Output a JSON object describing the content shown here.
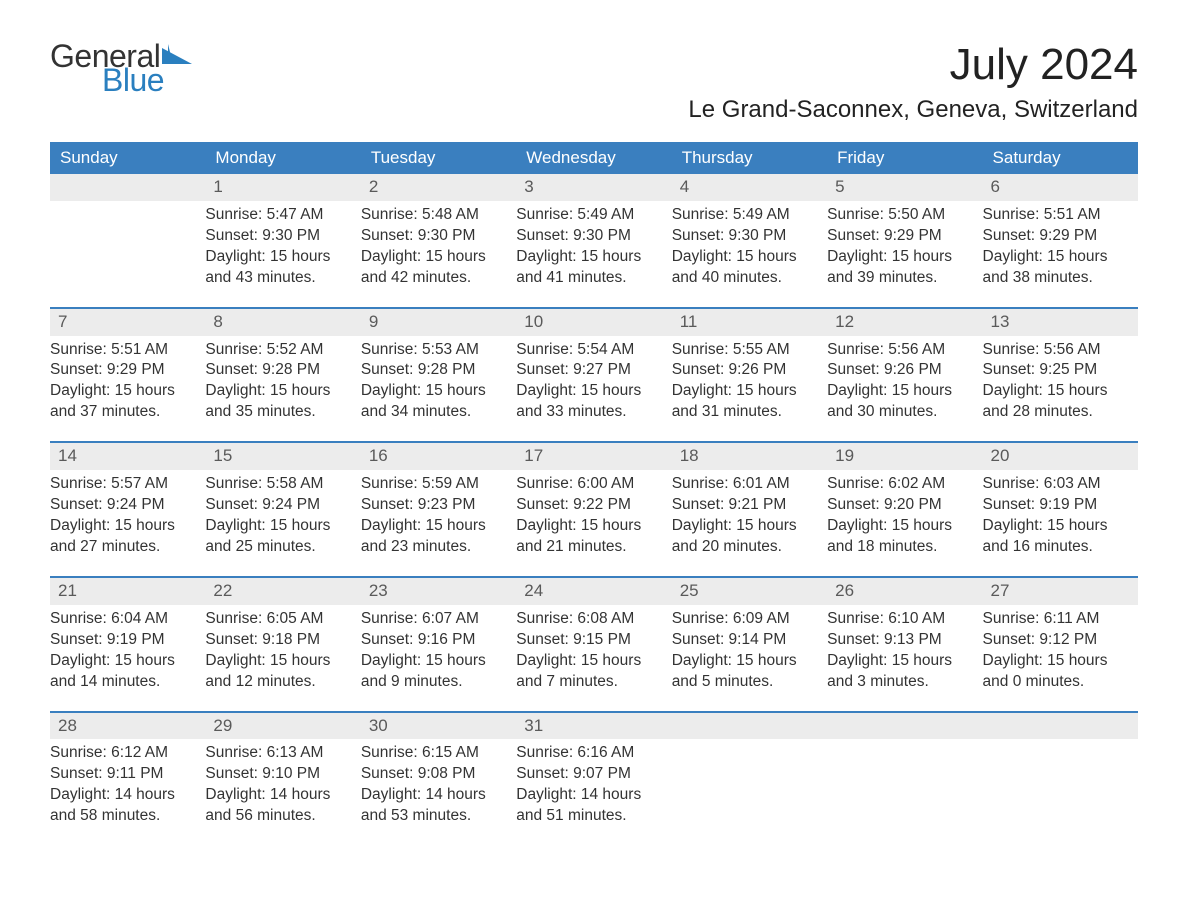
{
  "logo_word1": "General",
  "logo_word2": "Blue",
  "logo_icon_color": "#2a7fbf",
  "title": "July 2024",
  "location": "Le Grand-Saconnex, Geneva, Switzerland",
  "header_bg": "#3a7fbf",
  "header_fg": "#ffffff",
  "daynum_bg": "#ececec",
  "week_border_color": "#3a7fbf",
  "text_color": "#333333",
  "background_color": "#ffffff",
  "fontsize_title": 44,
  "fontsize_location": 24,
  "fontsize_header": 17,
  "fontsize_body": 15.5,
  "day_headers": [
    "Sunday",
    "Monday",
    "Tuesday",
    "Wednesday",
    "Thursday",
    "Friday",
    "Saturday"
  ],
  "weeks": [
    [
      null,
      {
        "n": "1",
        "sunrise": "Sunrise: 5:47 AM",
        "sunset": "Sunset: 9:30 PM",
        "d1": "Daylight: 15 hours",
        "d2": "and 43 minutes."
      },
      {
        "n": "2",
        "sunrise": "Sunrise: 5:48 AM",
        "sunset": "Sunset: 9:30 PM",
        "d1": "Daylight: 15 hours",
        "d2": "and 42 minutes."
      },
      {
        "n": "3",
        "sunrise": "Sunrise: 5:49 AM",
        "sunset": "Sunset: 9:30 PM",
        "d1": "Daylight: 15 hours",
        "d2": "and 41 minutes."
      },
      {
        "n": "4",
        "sunrise": "Sunrise: 5:49 AM",
        "sunset": "Sunset: 9:30 PM",
        "d1": "Daylight: 15 hours",
        "d2": "and 40 minutes."
      },
      {
        "n": "5",
        "sunrise": "Sunrise: 5:50 AM",
        "sunset": "Sunset: 9:29 PM",
        "d1": "Daylight: 15 hours",
        "d2": "and 39 minutes."
      },
      {
        "n": "6",
        "sunrise": "Sunrise: 5:51 AM",
        "sunset": "Sunset: 9:29 PM",
        "d1": "Daylight: 15 hours",
        "d2": "and 38 minutes."
      }
    ],
    [
      {
        "n": "7",
        "sunrise": "Sunrise: 5:51 AM",
        "sunset": "Sunset: 9:29 PM",
        "d1": "Daylight: 15 hours",
        "d2": "and 37 minutes."
      },
      {
        "n": "8",
        "sunrise": "Sunrise: 5:52 AM",
        "sunset": "Sunset: 9:28 PM",
        "d1": "Daylight: 15 hours",
        "d2": "and 35 minutes."
      },
      {
        "n": "9",
        "sunrise": "Sunrise: 5:53 AM",
        "sunset": "Sunset: 9:28 PM",
        "d1": "Daylight: 15 hours",
        "d2": "and 34 minutes."
      },
      {
        "n": "10",
        "sunrise": "Sunrise: 5:54 AM",
        "sunset": "Sunset: 9:27 PM",
        "d1": "Daylight: 15 hours",
        "d2": "and 33 minutes."
      },
      {
        "n": "11",
        "sunrise": "Sunrise: 5:55 AM",
        "sunset": "Sunset: 9:26 PM",
        "d1": "Daylight: 15 hours",
        "d2": "and 31 minutes."
      },
      {
        "n": "12",
        "sunrise": "Sunrise: 5:56 AM",
        "sunset": "Sunset: 9:26 PM",
        "d1": "Daylight: 15 hours",
        "d2": "and 30 minutes."
      },
      {
        "n": "13",
        "sunrise": "Sunrise: 5:56 AM",
        "sunset": "Sunset: 9:25 PM",
        "d1": "Daylight: 15 hours",
        "d2": "and 28 minutes."
      }
    ],
    [
      {
        "n": "14",
        "sunrise": "Sunrise: 5:57 AM",
        "sunset": "Sunset: 9:24 PM",
        "d1": "Daylight: 15 hours",
        "d2": "and 27 minutes."
      },
      {
        "n": "15",
        "sunrise": "Sunrise: 5:58 AM",
        "sunset": "Sunset: 9:24 PM",
        "d1": "Daylight: 15 hours",
        "d2": "and 25 minutes."
      },
      {
        "n": "16",
        "sunrise": "Sunrise: 5:59 AM",
        "sunset": "Sunset: 9:23 PM",
        "d1": "Daylight: 15 hours",
        "d2": "and 23 minutes."
      },
      {
        "n": "17",
        "sunrise": "Sunrise: 6:00 AM",
        "sunset": "Sunset: 9:22 PM",
        "d1": "Daylight: 15 hours",
        "d2": "and 21 minutes."
      },
      {
        "n": "18",
        "sunrise": "Sunrise: 6:01 AM",
        "sunset": "Sunset: 9:21 PM",
        "d1": "Daylight: 15 hours",
        "d2": "and 20 minutes."
      },
      {
        "n": "19",
        "sunrise": "Sunrise: 6:02 AM",
        "sunset": "Sunset: 9:20 PM",
        "d1": "Daylight: 15 hours",
        "d2": "and 18 minutes."
      },
      {
        "n": "20",
        "sunrise": "Sunrise: 6:03 AM",
        "sunset": "Sunset: 9:19 PM",
        "d1": "Daylight: 15 hours",
        "d2": "and 16 minutes."
      }
    ],
    [
      {
        "n": "21",
        "sunrise": "Sunrise: 6:04 AM",
        "sunset": "Sunset: 9:19 PM",
        "d1": "Daylight: 15 hours",
        "d2": "and 14 minutes."
      },
      {
        "n": "22",
        "sunrise": "Sunrise: 6:05 AM",
        "sunset": "Sunset: 9:18 PM",
        "d1": "Daylight: 15 hours",
        "d2": "and 12 minutes."
      },
      {
        "n": "23",
        "sunrise": "Sunrise: 6:07 AM",
        "sunset": "Sunset: 9:16 PM",
        "d1": "Daylight: 15 hours",
        "d2": "and 9 minutes."
      },
      {
        "n": "24",
        "sunrise": "Sunrise: 6:08 AM",
        "sunset": "Sunset: 9:15 PM",
        "d1": "Daylight: 15 hours",
        "d2": "and 7 minutes."
      },
      {
        "n": "25",
        "sunrise": "Sunrise: 6:09 AM",
        "sunset": "Sunset: 9:14 PM",
        "d1": "Daylight: 15 hours",
        "d2": "and 5 minutes."
      },
      {
        "n": "26",
        "sunrise": "Sunrise: 6:10 AM",
        "sunset": "Sunset: 9:13 PM",
        "d1": "Daylight: 15 hours",
        "d2": "and 3 minutes."
      },
      {
        "n": "27",
        "sunrise": "Sunrise: 6:11 AM",
        "sunset": "Sunset: 9:12 PM",
        "d1": "Daylight: 15 hours",
        "d2": "and 0 minutes."
      }
    ],
    [
      {
        "n": "28",
        "sunrise": "Sunrise: 6:12 AM",
        "sunset": "Sunset: 9:11 PM",
        "d1": "Daylight: 14 hours",
        "d2": "and 58 minutes."
      },
      {
        "n": "29",
        "sunrise": "Sunrise: 6:13 AM",
        "sunset": "Sunset: 9:10 PM",
        "d1": "Daylight: 14 hours",
        "d2": "and 56 minutes."
      },
      {
        "n": "30",
        "sunrise": "Sunrise: 6:15 AM",
        "sunset": "Sunset: 9:08 PM",
        "d1": "Daylight: 14 hours",
        "d2": "and 53 minutes."
      },
      {
        "n": "31",
        "sunrise": "Sunrise: 6:16 AM",
        "sunset": "Sunset: 9:07 PM",
        "d1": "Daylight: 14 hours",
        "d2": "and 51 minutes."
      },
      null,
      null,
      null
    ]
  ]
}
